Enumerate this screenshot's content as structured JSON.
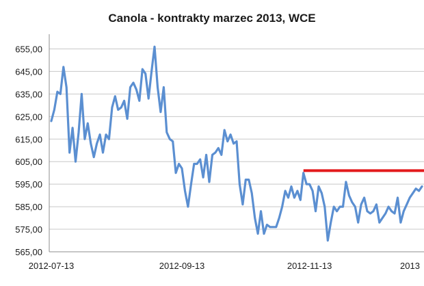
{
  "chart_data": {
    "type": "line",
    "title": "Canola - kontrakty marzec 2013, WCE",
    "xlabel": "",
    "ylabel": "",
    "ylim": [
      565,
      660
    ],
    "y_ticks": [
      "655,00",
      "645,00",
      "635,00",
      "625,00",
      "615,00",
      "605,00",
      "595,00",
      "585,00",
      "575,00",
      "565,00"
    ],
    "x_ticks": [
      "2012-07-13",
      "2012-09-13",
      "2012-11-13",
      "2013"
    ],
    "grid": "horizontal",
    "legend": "none",
    "colors": {
      "series": "#5b8fd1",
      "reference": "#e31a1c",
      "grid": "#c8c8c8",
      "axis": "#8c8c8c"
    },
    "series": [
      {
        "x": [
          "2012-07-13",
          "2012-07-16",
          "2012-07-17",
          "2012-07-18",
          "2012-07-19",
          "2012-07-20",
          "2012-07-23",
          "2012-07-24",
          "2012-07-25",
          "2012-07-26",
          "2012-07-27",
          "2012-07-30",
          "2012-07-31",
          "2012-08-01",
          "2012-08-02",
          "2012-08-03",
          "2012-08-06",
          "2012-08-07",
          "2012-08-08",
          "2012-08-09",
          "2012-08-10",
          "2012-08-13",
          "2012-08-14",
          "2012-08-15",
          "2012-08-16",
          "2012-08-17",
          "2012-08-20",
          "2012-08-21",
          "2012-08-22",
          "2012-08-23",
          "2012-08-24",
          "2012-08-27",
          "2012-08-28",
          "2012-08-29",
          "2012-08-30",
          "2012-08-31",
          "2012-09-04",
          "2012-09-05",
          "2012-09-06",
          "2012-09-07",
          "2012-09-10",
          "2012-09-11",
          "2012-09-12",
          "2012-09-13",
          "2012-09-14",
          "2012-09-17",
          "2012-09-18",
          "2012-09-19",
          "2012-09-20",
          "2012-09-21",
          "2012-09-24",
          "2012-09-25",
          "2012-09-26",
          "2012-09-27",
          "2012-09-28",
          "2012-10-01",
          "2012-10-02",
          "2012-10-03",
          "2012-10-04",
          "2012-10-05",
          "2012-10-09",
          "2012-10-10",
          "2012-10-11",
          "2012-10-12",
          "2012-10-15",
          "2012-10-16",
          "2012-10-17",
          "2012-10-18",
          "2012-10-19",
          "2012-10-22",
          "2012-10-23",
          "2012-10-24",
          "2012-10-25",
          "2012-10-26",
          "2012-10-29",
          "2012-10-30",
          "2012-10-31",
          "2012-11-01",
          "2012-11-02",
          "2012-11-05",
          "2012-11-06",
          "2012-11-07",
          "2012-11-08",
          "2012-11-09",
          "2012-11-12",
          "2012-11-13",
          "2012-11-14",
          "2012-11-15",
          "2012-11-16",
          "2012-11-19",
          "2012-11-20",
          "2012-11-21",
          "2012-11-23",
          "2012-11-26",
          "2012-11-27",
          "2012-11-28",
          "2012-11-29",
          "2012-11-30",
          "2012-12-03",
          "2012-12-04",
          "2012-12-05",
          "2012-12-06",
          "2012-12-07",
          "2012-12-10",
          "2012-12-11",
          "2012-12-12",
          "2012-12-13",
          "2012-12-14",
          "2012-12-17",
          "2012-12-18",
          "2012-12-19",
          "2012-12-20",
          "2012-12-21",
          "2012-12-24",
          "2012-12-27",
          "2012-12-28",
          "2012-12-31",
          "2013-01-02",
          "2013-01-03",
          "2013-01-04",
          "2013-01-07",
          "2013-01-08",
          "2013-01-09"
        ],
        "values": [
          623,
          628,
          636,
          635,
          647,
          638,
          609,
          620,
          605,
          618,
          635,
          615,
          622,
          613,
          607,
          613,
          617,
          609,
          617,
          615,
          629,
          634,
          628,
          629,
          632,
          624,
          638,
          640,
          637,
          632,
          646,
          644,
          633,
          645,
          656,
          638,
          627,
          638,
          618,
          615,
          614,
          600,
          604,
          602,
          592,
          585,
          595,
          604,
          604,
          606,
          598,
          608,
          596,
          608,
          609,
          611,
          608,
          619,
          614,
          617,
          613,
          614,
          595,
          586,
          597,
          597,
          591,
          580,
          573,
          583,
          573,
          577,
          576,
          576,
          576,
          580,
          585,
          592,
          589,
          594,
          589,
          592,
          588,
          600,
          595,
          595,
          592,
          583,
          594,
          591,
          585,
          570,
          578,
          585,
          583,
          585,
          585,
          596,
          590,
          587,
          585,
          578,
          586,
          589,
          583,
          582,
          583,
          586,
          578,
          580,
          582,
          585,
          583,
          582,
          589,
          578,
          583,
          586,
          589,
          591,
          593,
          592,
          594
        ]
      }
    ],
    "reference_line": {
      "value": 601,
      "from_x": "2012-11-09",
      "to_x": "2013-01-09"
    }
  }
}
